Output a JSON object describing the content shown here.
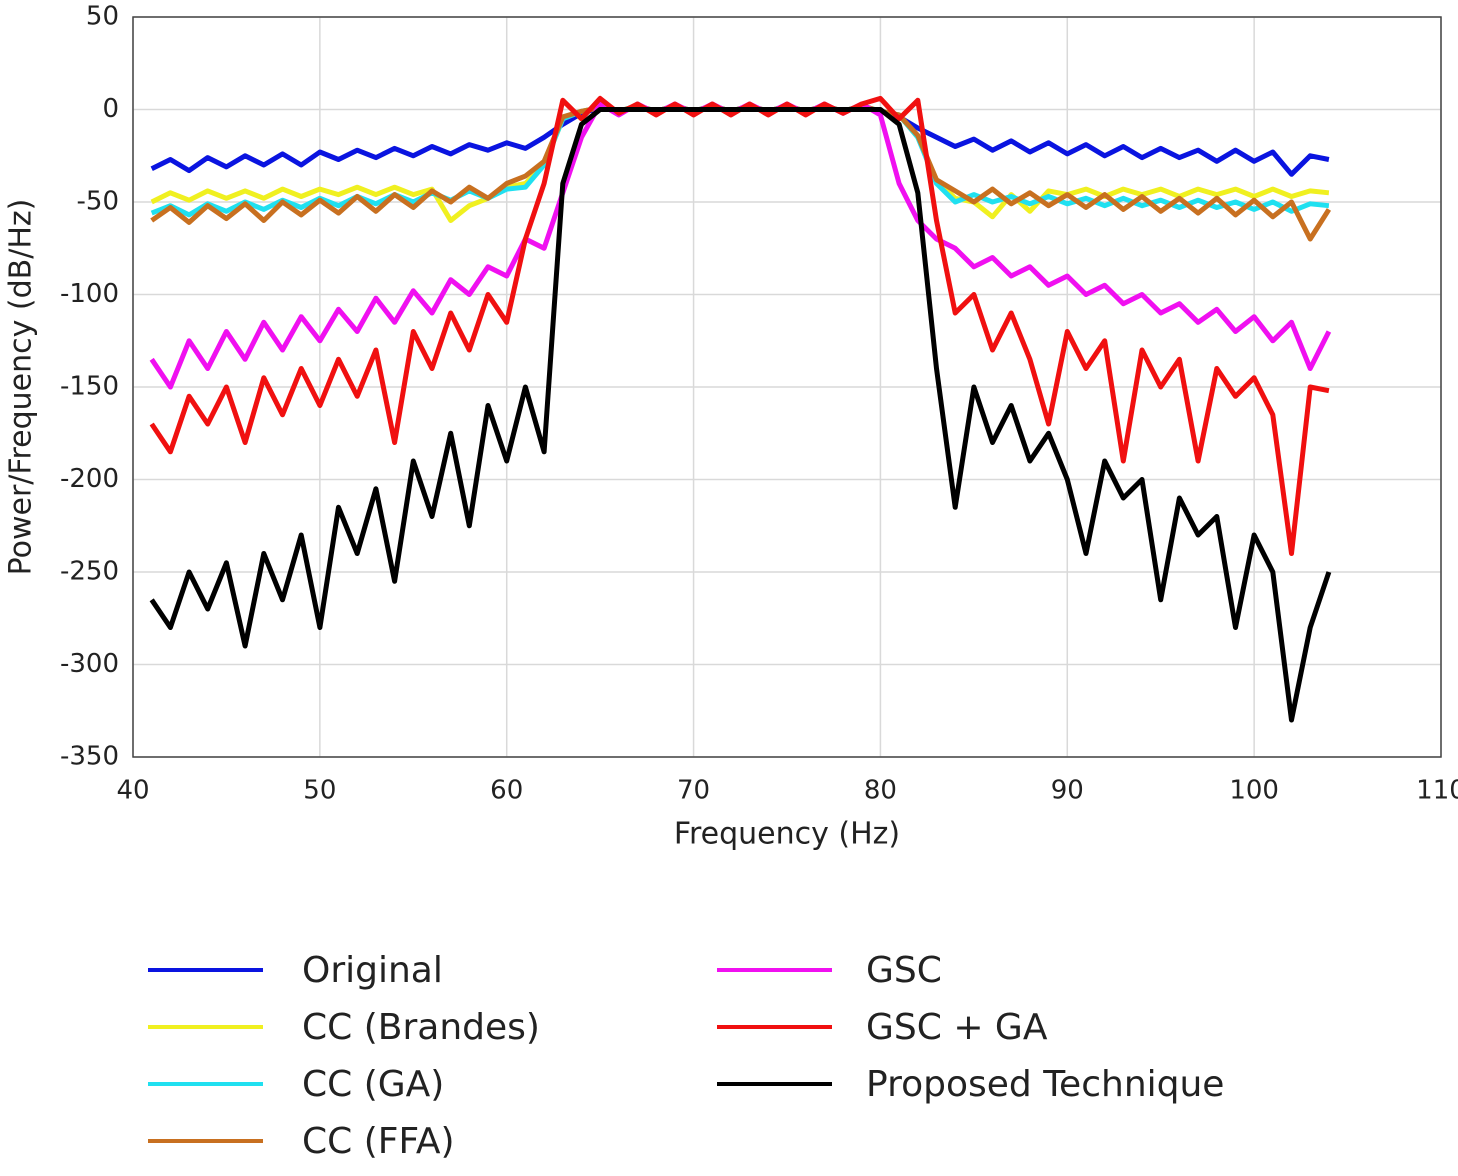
{
  "chart_data": {
    "type": "line",
    "xlabel": "Frequency (Hz)",
    "ylabel": "Power/Frequency (dB/Hz)",
    "xlim": [
      40,
      110
    ],
    "xticks": [
      40,
      50,
      60,
      70,
      80,
      90,
      100,
      110
    ],
    "ylim": [
      -350,
      50
    ],
    "yticks": [
      50,
      0,
      -50,
      -100,
      -150,
      -200,
      -250,
      -300,
      -350
    ],
    "grid": true,
    "x": [
      41,
      42,
      43,
      44,
      45,
      46,
      47,
      48,
      49,
      50,
      51,
      52,
      53,
      54,
      55,
      56,
      57,
      58,
      59,
      60,
      61,
      62,
      63,
      64,
      65,
      66,
      67,
      68,
      69,
      70,
      71,
      72,
      73,
      74,
      75,
      76,
      77,
      78,
      79,
      80,
      81,
      82,
      83,
      84,
      85,
      86,
      87,
      88,
      89,
      90,
      91,
      92,
      93,
      94,
      95,
      96,
      97,
      98,
      99,
      100,
      101,
      102,
      103,
      104
    ],
    "series": [
      {
        "name": "Original",
        "color": "#0a14e0",
        "values": [
          -32,
          -27,
          -33,
          -26,
          -31,
          -25,
          -30,
          -24,
          -30,
          -23,
          -27,
          -22,
          -26,
          -21,
          -25,
          -20,
          -24,
          -19,
          -22,
          -18,
          -21,
          -15,
          -8,
          -2,
          1,
          -1,
          2,
          -1,
          2,
          -1,
          2,
          -1,
          2,
          -1,
          2,
          -1,
          2,
          -1,
          2,
          -1,
          -4,
          -10,
          -15,
          -20,
          -16,
          -22,
          -17,
          -23,
          -18,
          -24,
          -19,
          -25,
          -20,
          -26,
          -21,
          -26,
          -22,
          -28,
          -22,
          -28,
          -23,
          -35,
          -25,
          -27
        ]
      },
      {
        "name": "CC (Brandes)",
        "color": "#f0f020",
        "values": [
          -50,
          -45,
          -49,
          -44,
          -48,
          -44,
          -48,
          -43,
          -47,
          -43,
          -46,
          -42,
          -46,
          -42,
          -46,
          -43,
          -60,
          -52,
          -48,
          -42,
          -40,
          -30,
          -5,
          -1,
          1,
          -1,
          2,
          -1,
          2,
          -1,
          2,
          -1,
          2,
          -1,
          2,
          -1,
          2,
          -1,
          2,
          -1,
          -3,
          -15,
          -38,
          -48,
          -50,
          -58,
          -46,
          -55,
          -44,
          -46,
          -43,
          -47,
          -43,
          -46,
          -43,
          -47,
          -43,
          -46,
          -43,
          -47,
          -43,
          -47,
          -44,
          -45
        ]
      },
      {
        "name": "CC (GA)",
        "color": "#20e0f0",
        "values": [
          -56,
          -52,
          -57,
          -51,
          -55,
          -50,
          -54,
          -49,
          -53,
          -48,
          -52,
          -47,
          -51,
          -46,
          -50,
          -45,
          -49,
          -44,
          -48,
          -43,
          -42,
          -30,
          -5,
          -1,
          1,
          -1,
          2,
          -1,
          2,
          -1,
          2,
          -1,
          2,
          -1,
          2,
          -1,
          2,
          -1,
          2,
          -1,
          -3,
          -15,
          -40,
          -50,
          -46,
          -50,
          -47,
          -51,
          -47,
          -51,
          -48,
          -52,
          -48,
          -52,
          -49,
          -53,
          -49,
          -53,
          -50,
          -54,
          -50,
          -55,
          -51,
          -52
        ]
      },
      {
        "name": "CC (FFA)",
        "color": "#c87020",
        "values": [
          -60,
          -53,
          -61,
          -52,
          -59,
          -51,
          -60,
          -50,
          -57,
          -49,
          -56,
          -47,
          -55,
          -46,
          -53,
          -44,
          -50,
          -42,
          -48,
          -40,
          -36,
          -28,
          -4,
          -1,
          1,
          -1,
          2,
          -1,
          2,
          -1,
          2,
          -1,
          2,
          -1,
          2,
          -1,
          2,
          -1,
          2,
          -1,
          -3,
          -14,
          -38,
          -44,
          -50,
          -43,
          -51,
          -45,
          -52,
          -46,
          -53,
          -46,
          -54,
          -47,
          -55,
          -48,
          -56,
          -48,
          -57,
          -49,
          -58,
          -50,
          -70,
          -54
        ]
      },
      {
        "name": "GSC",
        "color": "#f010f0",
        "values": [
          -135,
          -150,
          -125,
          -140,
          -120,
          -135,
          -115,
          -130,
          -112,
          -125,
          -108,
          -120,
          -102,
          -115,
          -98,
          -110,
          -92,
          -100,
          -85,
          -90,
          -70,
          -75,
          -45,
          -15,
          3,
          -3,
          3,
          -2,
          3,
          -2,
          3,
          -2,
          3,
          -2,
          3,
          -2,
          3,
          -2,
          3,
          -3,
          -40,
          -60,
          -70,
          -75,
          -85,
          -80,
          -90,
          -85,
          -95,
          -90,
          -100,
          -95,
          -105,
          -100,
          -110,
          -105,
          -115,
          -108,
          -120,
          -112,
          -125,
          -115,
          -140,
          -120
        ]
      },
      {
        "name": "GSC + GA",
        "color": "#f01010",
        "values": [
          -170,
          -185,
          -155,
          -170,
          -150,
          -180,
          -145,
          -165,
          -140,
          -160,
          -135,
          -155,
          -130,
          -180,
          -120,
          -140,
          -110,
          -130,
          -100,
          -115,
          -70,
          -40,
          5,
          -5,
          6,
          -2,
          3,
          -3,
          3,
          -3,
          3,
          -3,
          3,
          -3,
          3,
          -3,
          3,
          -2,
          3,
          6,
          -5,
          5,
          -60,
          -110,
          -100,
          -130,
          -110,
          -135,
          -170,
          -120,
          -140,
          -125,
          -190,
          -130,
          -150,
          -135,
          -190,
          -140,
          -155,
          -145,
          -165,
          -240,
          -150,
          -152
        ]
      },
      {
        "name": "Proposed Technique",
        "color": "#000000",
        "values": [
          -265,
          -280,
          -250,
          -270,
          -245,
          -290,
          -240,
          -265,
          -230,
          -280,
          -215,
          -240,
          -205,
          -255,
          -190,
          -220,
          -175,
          -225,
          -160,
          -190,
          -150,
          -185,
          -40,
          -8,
          0,
          0,
          0,
          0,
          0,
          0,
          0,
          0,
          0,
          0,
          0,
          0,
          0,
          0,
          0,
          0,
          -8,
          -45,
          -140,
          -215,
          -150,
          -180,
          -160,
          -190,
          -175,
          -200,
          -240,
          -190,
          -210,
          -200,
          -265,
          -210,
          -230,
          -220,
          -280,
          -230,
          -250,
          -330,
          -280,
          -250
        ]
      }
    ]
  }
}
